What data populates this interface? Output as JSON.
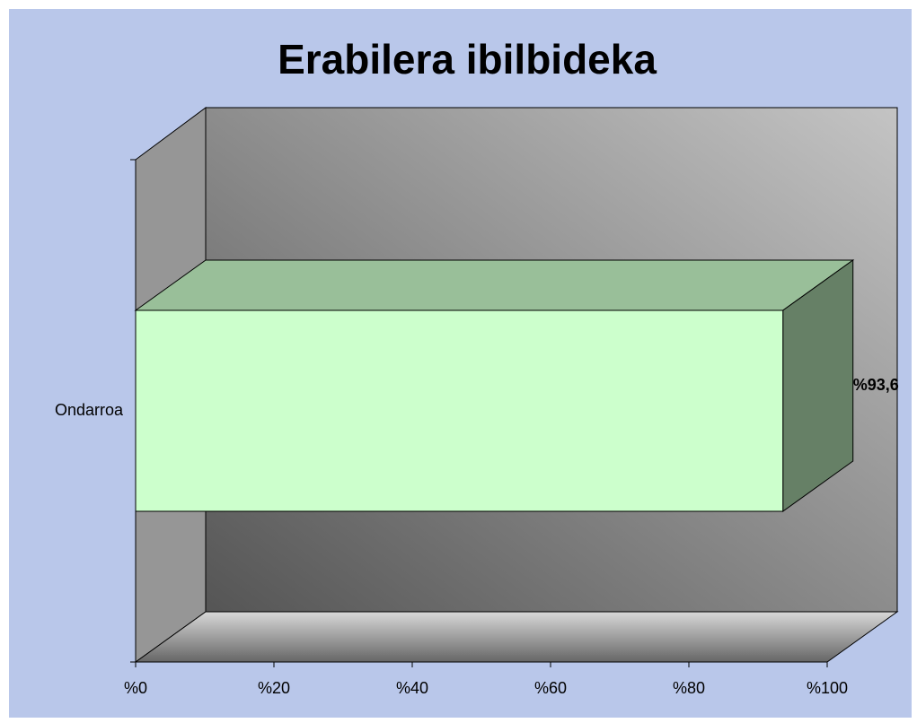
{
  "chart_data": {
    "type": "bar",
    "orientation": "horizontal",
    "title": "Erabilera ibilbideka",
    "categories": [
      "Ondarroa"
    ],
    "values": [
      93.6
    ],
    "value_labels": [
      "%93,6"
    ],
    "color": "#ccffcc",
    "xlim": [
      0,
      100
    ],
    "xticks": [
      {
        "value": 0,
        "label": "%0"
      },
      {
        "value": 20,
        "label": "%20"
      },
      {
        "value": 40,
        "label": "%40"
      },
      {
        "value": 60,
        "label": "%60"
      },
      {
        "value": 80,
        "label": "%80"
      },
      {
        "value": 100,
        "label": "%100"
      }
    ]
  }
}
